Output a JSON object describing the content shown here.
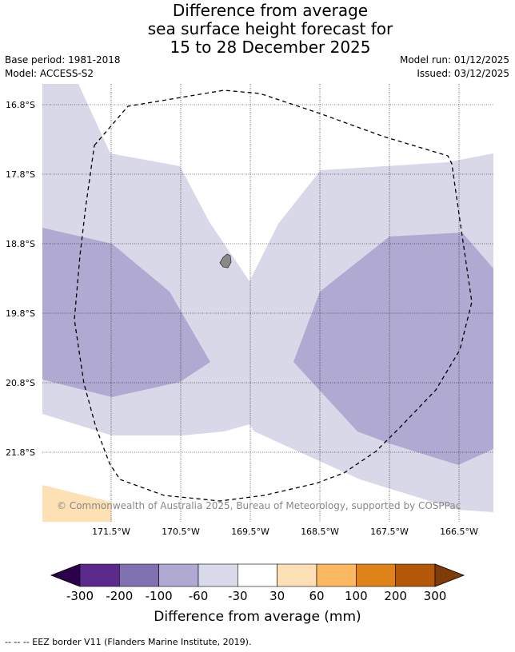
{
  "header": {
    "title_line1": "Difference from average",
    "title_line2": "sea surface height forecast for",
    "title_line3": "15 to 28 December 2025",
    "base_period": "Base period: 1981-2018",
    "model": "Model: ACCESS-S2",
    "model_run": "Model run: 01/12/2025",
    "issued": "Issued: 03/12/2025"
  },
  "map": {
    "lat_labels": [
      "16.8°S",
      "17.8°S",
      "18.8°S",
      "19.8°S",
      "20.8°S",
      "21.8°S"
    ],
    "lon_labels": [
      "171.5°W",
      "170.5°W",
      "169.5°W",
      "168.5°W",
      "167.5°W",
      "166.5°W"
    ],
    "copyright": "© Commonwealth of Australia 2025, Bureau of Meteorology, supported by COSPPac",
    "colors": {
      "light_purple": "#d8d8e8",
      "mid_purple": "#b0aad2",
      "light_orange": "#fde0b4",
      "land": "#8a8a8a"
    }
  },
  "colorbar": {
    "ticks": [
      "-300",
      "-200",
      "-100",
      "-60",
      "-30",
      "30",
      "60",
      "100",
      "200",
      "300"
    ],
    "colors": [
      "#2d004b",
      "#5b2a8c",
      "#8071b0",
      "#b0aad2",
      "#d8d9ea",
      "#ffffff",
      "#fde0b4",
      "#fcb761",
      "#e0821a",
      "#b35806",
      "#7f3b08"
    ],
    "label": "Difference from average (mm)"
  },
  "footer": {
    "legend_text": "-- -- -- EEZ border V11 (Flanders Marine Institute, 2019)."
  }
}
